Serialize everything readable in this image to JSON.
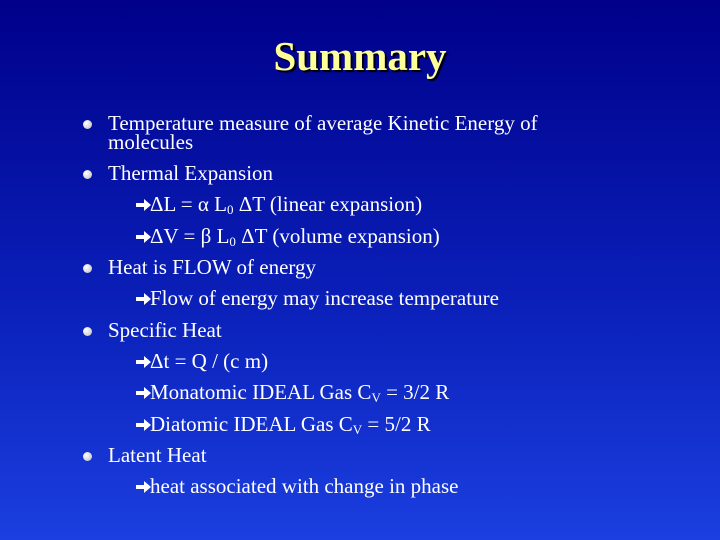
{
  "title": "Summary",
  "bullets": [
    {
      "text": "Temperature measure of average Kinetic Energy of molecules"
    },
    {
      "text": "Thermal Expansion",
      "items": [
        {
          "text": "ΔL = α L",
          "sub": "0",
          "post": " ΔT  (linear expansion)"
        },
        {
          "text": "ΔV = β L",
          "sub": "0",
          "post": " ΔT  (volume expansion)"
        }
      ]
    },
    {
      "text": "Heat is FLOW of energy",
      "items": [
        {
          "text": "Flow of energy may increase temperature"
        }
      ]
    },
    {
      "text": "Specific Heat",
      "items": [
        {
          "text": "Δt = Q / (c m)"
        },
        {
          "text": "Monatomic IDEAL Gas C",
          "sub": "V",
          "post": "  = 3/2 R"
        },
        {
          "text": "Diatomic IDEAL Gas  C",
          "sub": "V",
          "post": "  = 5/2 R"
        }
      ]
    },
    {
      "text": "Latent Heat",
      "items": [
        {
          "text": "heat associated with change in phase"
        }
      ]
    }
  ]
}
